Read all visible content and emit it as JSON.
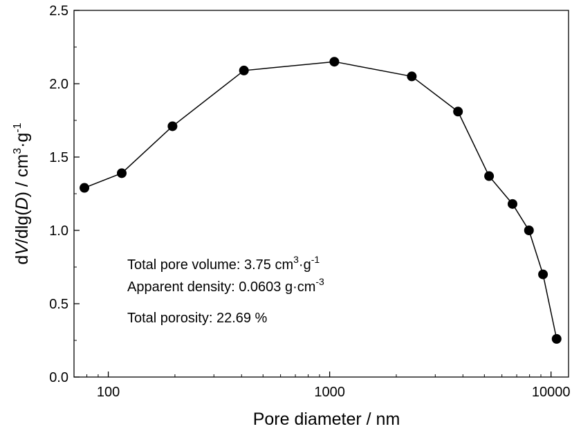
{
  "chart_data": {
    "type": "scatter",
    "xlabel": "Pore diameter / nm",
    "ylabel_parts": [
      "d",
      "V",
      "/dlg(",
      "D",
      ") / cm",
      "3",
      "·g",
      "-1"
    ],
    "xscale": "log",
    "xlim": [
      70,
      12000
    ],
    "ylim": [
      0.0,
      2.5
    ],
    "x_ticks": [
      100,
      1000,
      10000
    ],
    "x_tick_labels": [
      "100",
      "1000",
      "10000"
    ],
    "y_ticks": [
      0.0,
      0.5,
      1.0,
      1.5,
      2.0,
      2.5
    ],
    "y_tick_labels": [
      "0.0",
      "0.5",
      "1.0",
      "1.5",
      "2.0",
      "2.5"
    ],
    "grid": false,
    "series": [
      {
        "x": [
          78,
          115,
          195,
          410,
          1050,
          2350,
          3800,
          5250,
          6700,
          7950,
          9200,
          10600
        ],
        "y": [
          1.29,
          1.39,
          1.71,
          2.09,
          2.15,
          2.05,
          1.81,
          1.37,
          1.18,
          1.0,
          0.7,
          0.26
        ]
      }
    ],
    "annotations": [
      {
        "text": "Total pore volume: 3.75 cm",
        "sup1": "3",
        "mid": "·g",
        "sup2": "-1"
      },
      {
        "text": "Apparent density: 0.0603 g·cm",
        "sup1": "-3",
        "mid": "",
        "sup2": ""
      },
      {
        "text": "Total porosity: 22.69 %",
        "sup1": "",
        "mid": "",
        "sup2": ""
      }
    ]
  }
}
